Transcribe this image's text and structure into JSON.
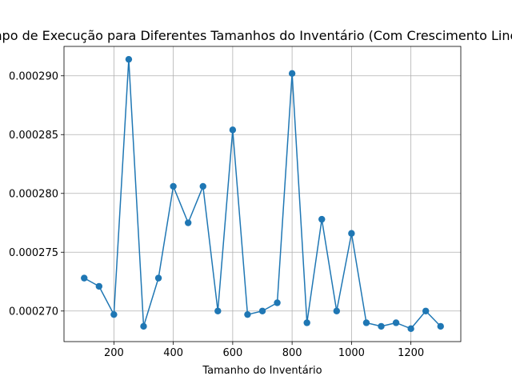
{
  "chart_data": {
    "type": "line",
    "title": "Tempo de Execução para Diferentes Tamanhos do Inventário (Com Crescimento Linear)",
    "xlabel": "Tamanho do Inventário",
    "ylabel": "",
    "xlim": [
      32,
      1368
    ],
    "ylim": [
      0.0002674,
      0.0002925
    ],
    "xticks": [
      200,
      400,
      600,
      800,
      1000,
      1200
    ],
    "xtick_labels": [
      "200",
      "400",
      "600",
      "800",
      "1000",
      "1200"
    ],
    "yticks": [
      0.00027,
      0.000275,
      0.00028,
      0.000285,
      0.00029
    ],
    "ytick_labels": [
      "0.000270",
      "0.000275",
      "0.000280",
      "0.000285",
      "0.000290"
    ],
    "grid": true,
    "series": [
      {
        "color": "#1f77b4",
        "marker": "circle",
        "x": [
          100,
          150,
          200,
          250,
          300,
          350,
          400,
          450,
          500,
          550,
          600,
          650,
          700,
          750,
          800,
          850,
          900,
          950,
          1000,
          1050,
          1100,
          1150,
          1200,
          1250,
          1300
        ],
        "y": [
          0.0002728,
          0.0002721,
          0.0002697,
          0.0002914,
          0.0002687,
          0.0002728,
          0.0002806,
          0.0002775,
          0.0002806,
          0.00027,
          0.0002854,
          0.0002697,
          0.00027,
          0.0002707,
          0.0002902,
          0.000269,
          0.0002778,
          0.00027,
          0.0002766,
          0.000269,
          0.0002687,
          0.000269,
          0.0002685,
          0.00027,
          0.0002687
        ]
      }
    ]
  }
}
